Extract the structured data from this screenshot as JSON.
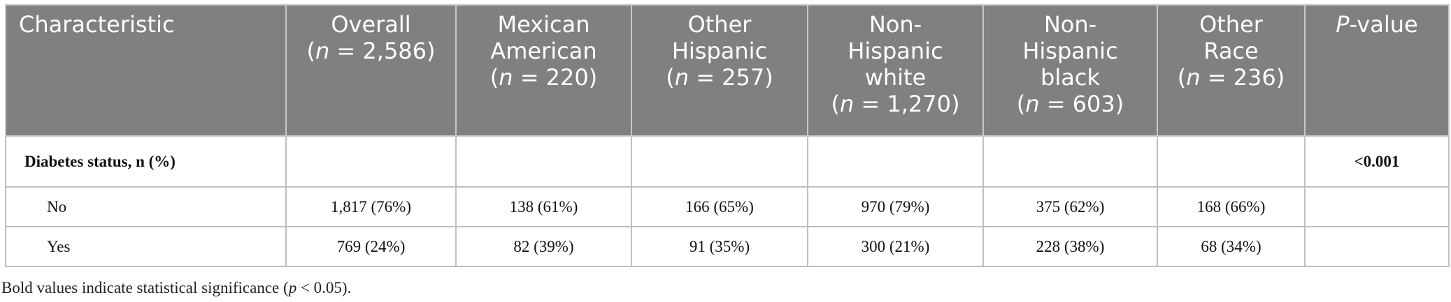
{
  "table": {
    "header": [
      {
        "lines": [
          "Characteristic"
        ]
      },
      {
        "lines": [
          "Overall",
          "(n = 2,586)"
        ]
      },
      {
        "lines": [
          "Mexican",
          "American",
          "(n = 220)"
        ]
      },
      {
        "lines": [
          "Other",
          "Hispanic",
          "(n = 257)"
        ]
      },
      {
        "lines": [
          "Non-",
          "Hispanic",
          "white",
          "(n = 1,270)"
        ]
      },
      {
        "lines": [
          "Non-",
          "Hispanic",
          "black",
          "(n = 603)"
        ]
      },
      {
        "lines": [
          "Other",
          "Race",
          "(n = 236)"
        ]
      },
      {
        "lines": [
          "P-value"
        ]
      }
    ],
    "rows": [
      {
        "label": "Diabetes status, n (%)",
        "p_value": "<0.001"
      },
      {
        "label": "No",
        "values": [
          "1,817 (76%)",
          "138 (61%)",
          "166 (65%)",
          "970 (79%)",
          "375 (62%)",
          "168 (66%)"
        ]
      },
      {
        "label": "Yes",
        "values": [
          "769 (24%)",
          "82 (39%)",
          "91 (35%)",
          "300 (21%)",
          "228 (38%)",
          "68 (34%)"
        ]
      }
    ],
    "footnote": "Bold values indicate statistical significance (p < 0.05)."
  }
}
